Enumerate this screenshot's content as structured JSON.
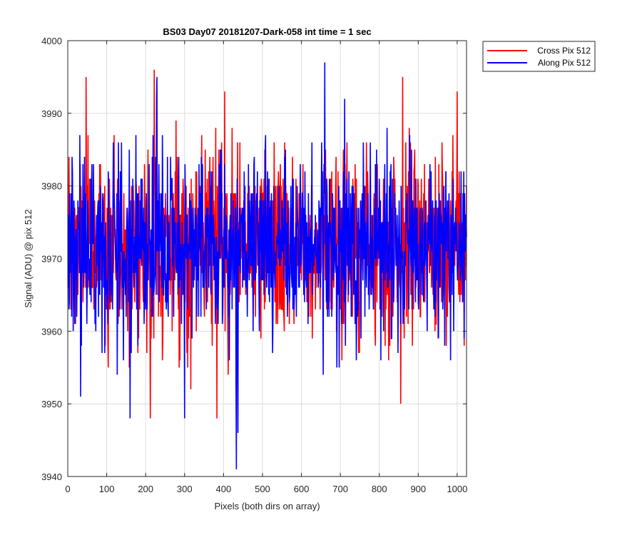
{
  "chart_data": {
    "type": "line",
    "title": "BS03 Day07 20181207-Dark-058 int time = 1 sec",
    "xlabel": "Pixels (both dirs on array)",
    "ylabel": "Signal (ADU) @ pix 512",
    "xlim": [
      0,
      1024
    ],
    "ylim": [
      3940,
      4000
    ],
    "xticks": [
      0,
      100,
      200,
      300,
      400,
      500,
      600,
      700,
      800,
      900,
      1000
    ],
    "yticks": [
      3940,
      3950,
      3960,
      3970,
      3980,
      3990,
      4000
    ],
    "grid": true,
    "legend_position": "outside-top-right",
    "noise_summary": {
      "num_points": 1024,
      "approx_mean": 3972,
      "approx_range": [
        3941,
        3997
      ]
    },
    "series": [
      {
        "name": "Cross Pix 512",
        "color": "#ff0000",
        "x_start": 1,
        "x_step": 1,
        "num_points": 1024,
        "approx_mean": 3972,
        "notable_values": [
          {
            "x": 47,
            "y": 3995
          },
          {
            "x": 212,
            "y": 3948
          },
          {
            "x": 222,
            "y": 3996
          },
          {
            "x": 383,
            "y": 3948
          },
          {
            "x": 403,
            "y": 3993
          },
          {
            "x": 855,
            "y": 3950
          },
          {
            "x": 860,
            "y": 3995
          },
          {
            "x": 1000,
            "y": 3993
          }
        ]
      },
      {
        "name": "Along Pix 512",
        "color": "#0000ff",
        "x_start": 1,
        "x_step": 1,
        "num_points": 1024,
        "approx_mean": 3972,
        "notable_values": [
          {
            "x": 33,
            "y": 3951
          },
          {
            "x": 160,
            "y": 3948
          },
          {
            "x": 229,
            "y": 3995
          },
          {
            "x": 300,
            "y": 3948
          },
          {
            "x": 433,
            "y": 3941
          },
          {
            "x": 437,
            "y": 3946
          },
          {
            "x": 660,
            "y": 3997
          },
          {
            "x": 1018,
            "y": 3959
          }
        ]
      }
    ]
  }
}
